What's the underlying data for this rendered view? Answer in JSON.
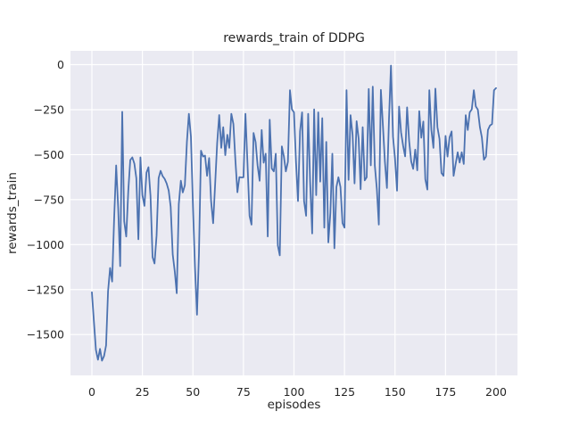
{
  "chart_data": {
    "type": "line",
    "title": "rewards_train of DDPG",
    "xlabel": "episodes",
    "ylabel": "rewards_train",
    "x_ticks": [
      0,
      25,
      50,
      75,
      100,
      125,
      150,
      175,
      200
    ],
    "x_tick_labels": [
      "0",
      "25",
      "50",
      "75",
      "100",
      "125",
      "150",
      "175",
      "200"
    ],
    "y_ticks": [
      0,
      -250,
      -500,
      -750,
      -1000,
      -1250,
      -1500
    ],
    "y_tick_labels": [
      "0",
      "−250",
      "−500",
      "−750",
      "−1000",
      "−1250",
      "−1500"
    ],
    "xlim": [
      -10.6,
      210.6
    ],
    "ylim": [
      -1727,
      77
    ],
    "grid": true,
    "legend_position": "none",
    "line_color": "#4c72b0",
    "line_width": 1.8,
    "axes_bg_color": "#eaeaf2",
    "grid_color": "#ffffff",
    "text_color": "#262626",
    "x_start": 0,
    "x_step": 1,
    "series": [
      {
        "name": "rewards_train",
        "values": [
          -1265,
          -1430,
          -1585,
          -1640,
          -1580,
          -1645,
          -1620,
          -1560,
          -1260,
          -1130,
          -1205,
          -860,
          -560,
          -800,
          -1120,
          -262,
          -870,
          -955,
          -700,
          -530,
          -515,
          -550,
          -630,
          -970,
          -515,
          -725,
          -785,
          -600,
          -570,
          -730,
          -1070,
          -1105,
          -950,
          -630,
          -590,
          -620,
          -634,
          -660,
          -700,
          -790,
          -1055,
          -1150,
          -1270,
          -775,
          -645,
          -710,
          -670,
          -429,
          -273,
          -400,
          -790,
          -1120,
          -1390,
          -1050,
          -478,
          -511,
          -505,
          -618,
          -519,
          -758,
          -881,
          -659,
          -437,
          -280,
          -462,
          -347,
          -503,
          -390,
          -462,
          -273,
          -330,
          -528,
          -709,
          -625,
          -627,
          -626,
          -273,
          -550,
          -840,
          -889,
          -380,
          -430,
          -560,
          -645,
          -363,
          -545,
          -495,
          -955,
          -306,
          -577,
          -593,
          -495,
          -1005,
          -1060,
          -454,
          -511,
          -593,
          -540,
          -142,
          -248,
          -265,
          -544,
          -758,
          -371,
          -265,
          -758,
          -840,
          -273,
          -650,
          -938,
          -248,
          -725,
          -265,
          -650,
          -297,
          -906,
          -429,
          -988,
          -824,
          -495,
          -1021,
          -680,
          -626,
          -680,
          -881,
          -906,
          -142,
          -640,
          -281,
          -390,
          -660,
          -314,
          -413,
          -692,
          -347,
          -643,
          -626,
          -135,
          -560,
          -122,
          -560,
          -692,
          -889,
          -140,
          -340,
          -538,
          -685,
          -300,
          -5,
          -400,
          -520,
          -700,
          -233,
          -375,
          -450,
          -510,
          -237,
          -425,
          -538,
          -579,
          -472,
          -587,
          -258,
          -406,
          -316,
          -636,
          -694,
          -142,
          -363,
          -462,
          -133,
          -347,
          -413,
          -602,
          -618,
          -396,
          -511,
          -404,
          -371,
          -618,
          -552,
          -487,
          -544,
          -487,
          -552,
          -281,
          -363,
          -265,
          -248,
          -142,
          -232,
          -250,
          -347,
          -404,
          -528,
          -511,
          -363,
          -338,
          -330,
          -142,
          -130
        ]
      }
    ]
  }
}
